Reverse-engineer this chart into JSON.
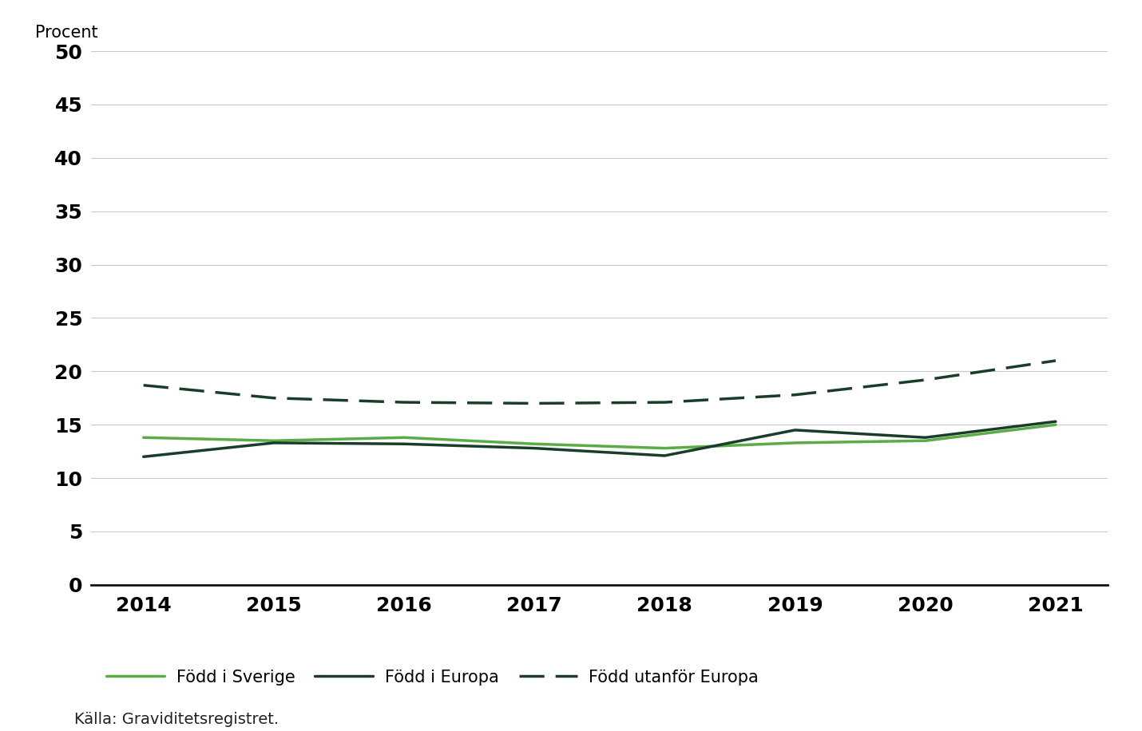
{
  "years": [
    2014,
    2015,
    2016,
    2017,
    2018,
    2019,
    2020,
    2021
  ],
  "born_sweden": [
    13.8,
    13.5,
    13.8,
    13.2,
    12.8,
    13.3,
    13.5,
    15.0
  ],
  "born_europe": [
    12.0,
    13.3,
    13.2,
    12.8,
    12.1,
    14.5,
    13.8,
    15.3
  ],
  "born_outside_europe": [
    18.7,
    17.5,
    17.1,
    17.0,
    17.1,
    17.8,
    19.2,
    21.0
  ],
  "color_sweden": "#5aac44",
  "color_europe": "#1a3d28",
  "color_outside_europe": "#1a3d28",
  "ylabel": "Procent",
  "ylim": [
    0,
    50
  ],
  "yticks": [
    0,
    5,
    10,
    15,
    20,
    25,
    30,
    35,
    40,
    45,
    50
  ],
  "xlim": [
    2013.6,
    2021.4
  ],
  "legend_sverige": "Född i Sverige",
  "legend_europa": "Född i Europa",
  "legend_utanfor": "Född utanför Europa",
  "source_text": "Källa: Graviditetsregistret.",
  "background_color": "#ffffff",
  "grid_color": "#c8c8c8",
  "line_width": 2.5,
  "font_size_ylabel": 15,
  "font_size_tick": 18,
  "font_size_legend": 15,
  "font_size_source": 14
}
